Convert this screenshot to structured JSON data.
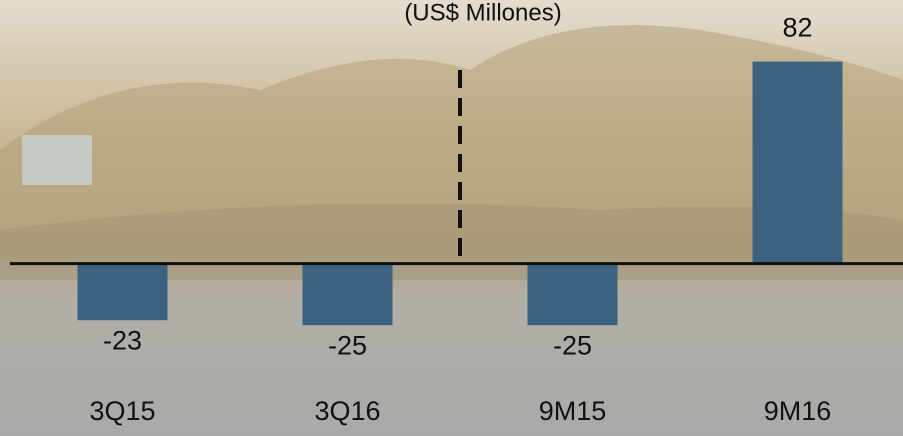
{
  "chart_data": {
    "type": "bar",
    "subtitle": "(US$ Millones)",
    "categories": [
      "3Q15",
      "3Q16",
      "9M15",
      "9M16"
    ],
    "values": [
      -23,
      -25,
      -25,
      82
    ],
    "color": "#3b6381",
    "ylim": [
      -70,
      107
    ]
  }
}
